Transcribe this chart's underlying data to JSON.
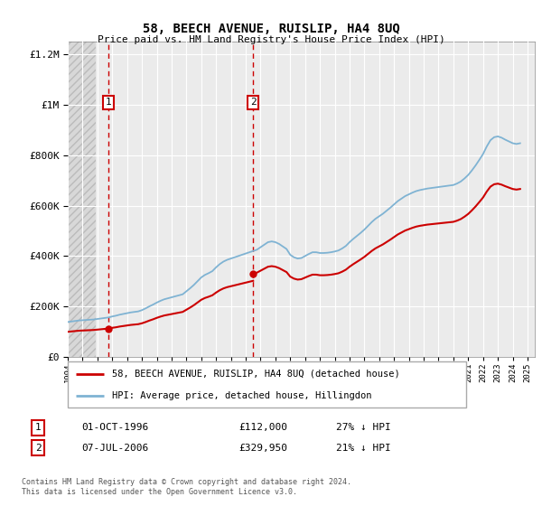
{
  "title": "58, BEECH AVENUE, RUISLIP, HA4 8UQ",
  "subtitle": "Price paid vs. HM Land Registry's House Price Index (HPI)",
  "legend_line1": "58, BEECH AVENUE, RUISLIP, HA4 8UQ (detached house)",
  "legend_line2": "HPI: Average price, detached house, Hillingdon",
  "sale1_year": 1996.75,
  "sale1_price": 112000,
  "sale1_label": "1",
  "sale1_date": "01-OCT-1996",
  "sale1_amount": "£112,000",
  "sale1_hpi": "27% ↓ HPI",
  "sale2_year": 2006.5,
  "sale2_price": 329950,
  "sale2_label": "2",
  "sale2_date": "07-JUL-2006",
  "sale2_amount": "£329,950",
  "sale2_hpi": "21% ↓ HPI",
  "xmin": 1994,
  "xmax": 2025.5,
  "ymin": 0,
  "ymax": 1250000,
  "red_color": "#cc0000",
  "blue_color": "#7fb3d3",
  "background_plot": "#ebebeb",
  "grid_color": "#ffffff",
  "hatch_color": "#d8d8d8",
  "footer": "Contains HM Land Registry data © Crown copyright and database right 2024.\nThis data is licensed under the Open Government Licence v3.0."
}
